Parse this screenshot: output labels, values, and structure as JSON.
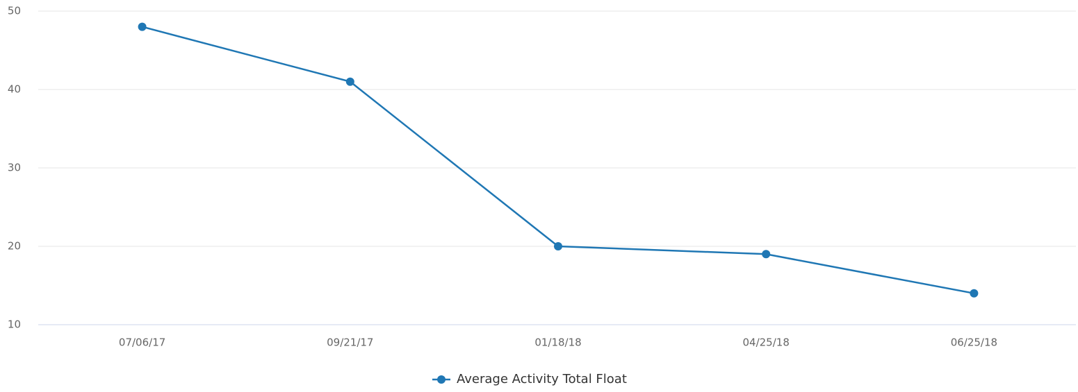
{
  "chart_data": {
    "type": "line",
    "categories": [
      "07/06/17",
      "09/21/17",
      "01/18/18",
      "04/25/18",
      "06/25/18"
    ],
    "series": [
      {
        "name": "Average Activity Total Float",
        "color": "#1f77b4",
        "values": [
          48,
          41,
          20,
          19,
          14
        ]
      }
    ],
    "ylim": [
      10,
      50
    ],
    "yticks": [
      10,
      20,
      30,
      40,
      50
    ],
    "grid": true,
    "legend": "bottom"
  }
}
